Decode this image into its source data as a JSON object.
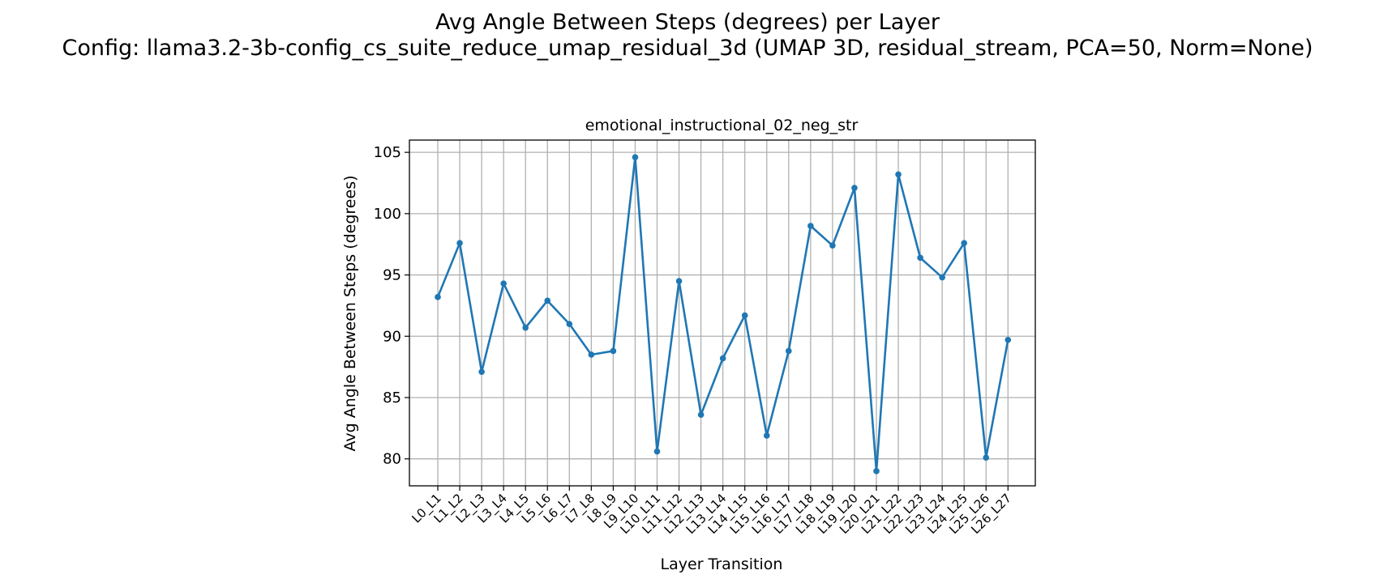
{
  "figure": {
    "suptitle_line1": "Avg Angle Between Steps (degrees) per Layer",
    "suptitle_line2": "Config: llama3.2-3b-config_cs_suite_reduce_umap_residual_3d (UMAP 3D, residual_stream, PCA=50, Norm=None)"
  },
  "chart_data": {
    "type": "line",
    "title": "emotional_instructional_02_neg_str",
    "xlabel": "Layer Transition",
    "ylabel": "Avg Angle Between Steps (degrees)",
    "ylim": [
      77.8,
      106.0
    ],
    "yticks": [
      80,
      85,
      90,
      95,
      100,
      105
    ],
    "grid": true,
    "color": "#1f77b4",
    "categories": [
      "L0_L1",
      "L1_L2",
      "L2_L3",
      "L3_L4",
      "L4_L5",
      "L5_L6",
      "L6_L7",
      "L7_L8",
      "L8_L9",
      "L9_L10",
      "L10_L11",
      "L11_L12",
      "L12_L13",
      "L13_L14",
      "L14_L15",
      "L15_L16",
      "L16_L17",
      "L17_L18",
      "L18_L19",
      "L19_L20",
      "L20_L21",
      "L21_L22",
      "L22_L23",
      "L23_L24",
      "L24_L25",
      "L25_L26",
      "L26_L27"
    ],
    "values": [
      93.2,
      97.6,
      87.1,
      94.3,
      90.7,
      92.9,
      91.0,
      88.5,
      88.8,
      104.6,
      80.6,
      94.5,
      83.6,
      88.2,
      91.7,
      81.9,
      88.8,
      99.0,
      97.4,
      102.1,
      79.0,
      103.2,
      96.4,
      94.8,
      97.6,
      80.1,
      89.7
    ]
  }
}
